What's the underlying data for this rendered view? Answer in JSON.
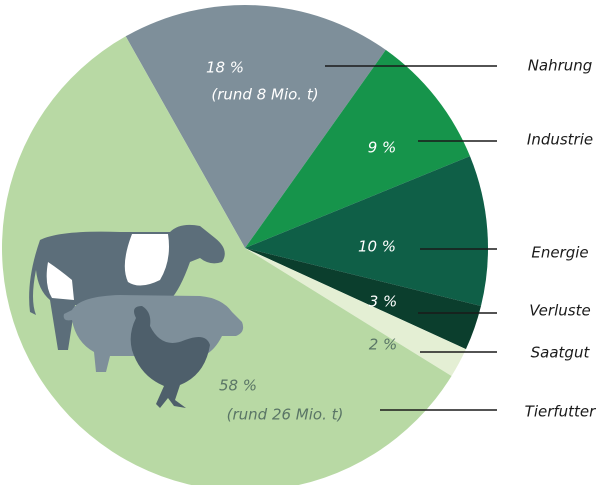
{
  "chart_data": {
    "type": "pie",
    "categories": [
      "Nahrung",
      "Industrie",
      "Energie",
      "Verluste",
      "Saatgut",
      "Tierfutter"
    ],
    "values": [
      18,
      9,
      10,
      3,
      2,
      58
    ],
    "value_labels": [
      "18 %",
      "9 %",
      "10 %",
      "3 %",
      "2 %",
      "58 %"
    ],
    "value_notes": [
      "(rund 8 Mio. t)",
      null,
      null,
      null,
      null,
      "(rund 26 Mio. t)"
    ],
    "colors": [
      "#7e8f9a",
      "#16944b",
      "#0f5f47",
      "#0b3e2d",
      "#e4efd4",
      "#b8d9a4"
    ],
    "label_colors": [
      "#ffffff",
      "#ffffff",
      "#ffffff",
      "#ffffff",
      "#5a7566",
      "#5a7566"
    ]
  }
}
